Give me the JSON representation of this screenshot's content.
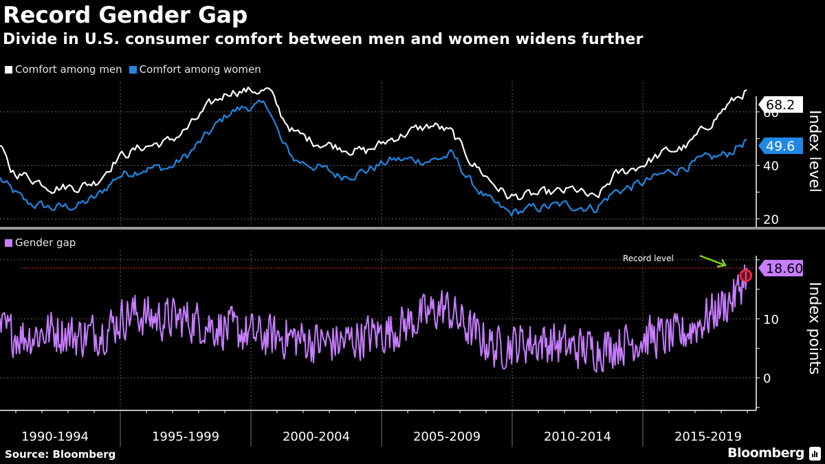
{
  "header": {
    "title": "Record Gender Gap",
    "subtitle": "Divide in U.S. consumer comfort between men and women widens further"
  },
  "footer": {
    "source": "Source: Bloomberg",
    "brand": "Bloomberg"
  },
  "chart_data": [
    {
      "type": "line",
      "panel": "top",
      "ylabel": "Index level",
      "ylim": [
        17,
        71
      ],
      "yticks": [
        20,
        40,
        60
      ],
      "grid": true,
      "legend": [
        {
          "name": "Comfort among men",
          "color": "#ffffff"
        },
        {
          "name": "Comfort among women",
          "color": "#1e88e5"
        }
      ],
      "legend_position": "top-left",
      "x_range": [
        1990.0,
        2018.6
      ],
      "series": [
        {
          "name": "Comfort among men",
          "color": "#ffffff",
          "last_value": 68.2,
          "last_label": "68.2",
          "anchors_x": [
            1990.0,
            1990.4,
            1991.0,
            1992.0,
            1993.0,
            1993.7,
            1994.5,
            1995.5,
            1996.5,
            1997.2,
            1998.0,
            1998.8,
            1999.5,
            2000.3,
            2000.8,
            2001.3,
            2002.0,
            2003.0,
            2004.0,
            2005.0,
            2005.8,
            2006.6,
            2007.3,
            2008.0,
            2008.8,
            2009.5,
            2010.5,
            2011.5,
            2012.0,
            2012.8,
            2013.5,
            2014.5,
            2015.5,
            2016.3,
            2017.0,
            2017.8,
            2018.6
          ],
          "anchors_y": [
            47,
            38,
            36,
            32,
            32,
            34,
            43,
            47,
            49,
            54,
            62,
            68,
            68,
            68,
            58,
            52,
            49,
            47,
            45,
            50,
            53,
            55,
            52,
            42,
            34,
            28,
            29,
            30,
            31,
            27,
            36,
            40,
            45,
            47,
            54,
            62,
            68.2
          ]
        },
        {
          "name": "Comfort among women",
          "color": "#1e88e5",
          "last_value": 49.6,
          "last_label": "49.6",
          "anchors_x": [
            1990.0,
            1990.4,
            1991.0,
            1992.0,
            1993.0,
            1993.7,
            1994.5,
            1995.5,
            1996.5,
            1997.2,
            1998.0,
            1998.8,
            1999.5,
            2000.3,
            2000.8,
            2001.3,
            2002.0,
            2003.0,
            2004.0,
            2005.0,
            2005.8,
            2006.6,
            2007.3,
            2008.0,
            2008.8,
            2009.5,
            2010.5,
            2011.5,
            2012.0,
            2012.8,
            2013.5,
            2014.5,
            2015.5,
            2016.3,
            2017.0,
            2017.8,
            2018.6
          ],
          "anchors_y": [
            35,
            31,
            26,
            24,
            25,
            28,
            36,
            39,
            39,
            44,
            52,
            60,
            62,
            62,
            48,
            42,
            40,
            36,
            38,
            42,
            42,
            42,
            44,
            34,
            26,
            22,
            24,
            25,
            25,
            24,
            30,
            33,
            37,
            40,
            42,
            44,
            49.6
          ]
        }
      ]
    },
    {
      "type": "line",
      "panel": "bottom",
      "ylabel": "Index points",
      "ylim": [
        -5.5,
        21.5
      ],
      "yticks": [
        0,
        10
      ],
      "grid": true,
      "legend": [
        {
          "name": "Gender gap",
          "color": "#c77dff"
        }
      ],
      "legend_position": "top-left",
      "x_range": [
        1990.0,
        2018.6
      ],
      "series": [
        {
          "name": "Gender gap",
          "color": "#c77dff",
          "last_value": 18.6,
          "last_label": "18.60",
          "anchors_x": [
            1990.0,
            1991.0,
            1992.0,
            1993.0,
            1994.0,
            1995.0,
            1996.0,
            1997.0,
            1998.0,
            1999.0,
            2000.0,
            2001.0,
            2002.0,
            2003.0,
            2004.0,
            2005.0,
            2006.0,
            2007.0,
            2008.0,
            2009.0,
            2010.0,
            2011.0,
            2012.0,
            2013.0,
            2014.0,
            2015.0,
            2016.0,
            2017.0,
            2017.6,
            2018.2,
            2018.6
          ],
          "anchors_y": [
            8,
            7,
            8,
            7,
            8,
            11,
            10,
            10,
            9,
            8,
            7,
            7,
            6,
            6,
            7,
            8,
            10,
            12,
            8,
            5,
            6,
            6,
            5,
            5,
            6,
            7,
            7,
            10,
            12,
            14,
            18.6
          ]
        }
      ],
      "reference_line": {
        "value": 18.6,
        "color": "#ff2a2a",
        "style": "dotted"
      },
      "annotation": {
        "text": "Record level",
        "arrow_color": "#7ed321",
        "marker_color": "#ff2a4a"
      }
    }
  ],
  "x_axis": {
    "period_labels": [
      "1990-1994",
      "1995-1999",
      "2000-2004",
      "2005-2009",
      "2010-2014",
      "2015-2019"
    ],
    "start_year": 1990,
    "end_year": 2020
  }
}
